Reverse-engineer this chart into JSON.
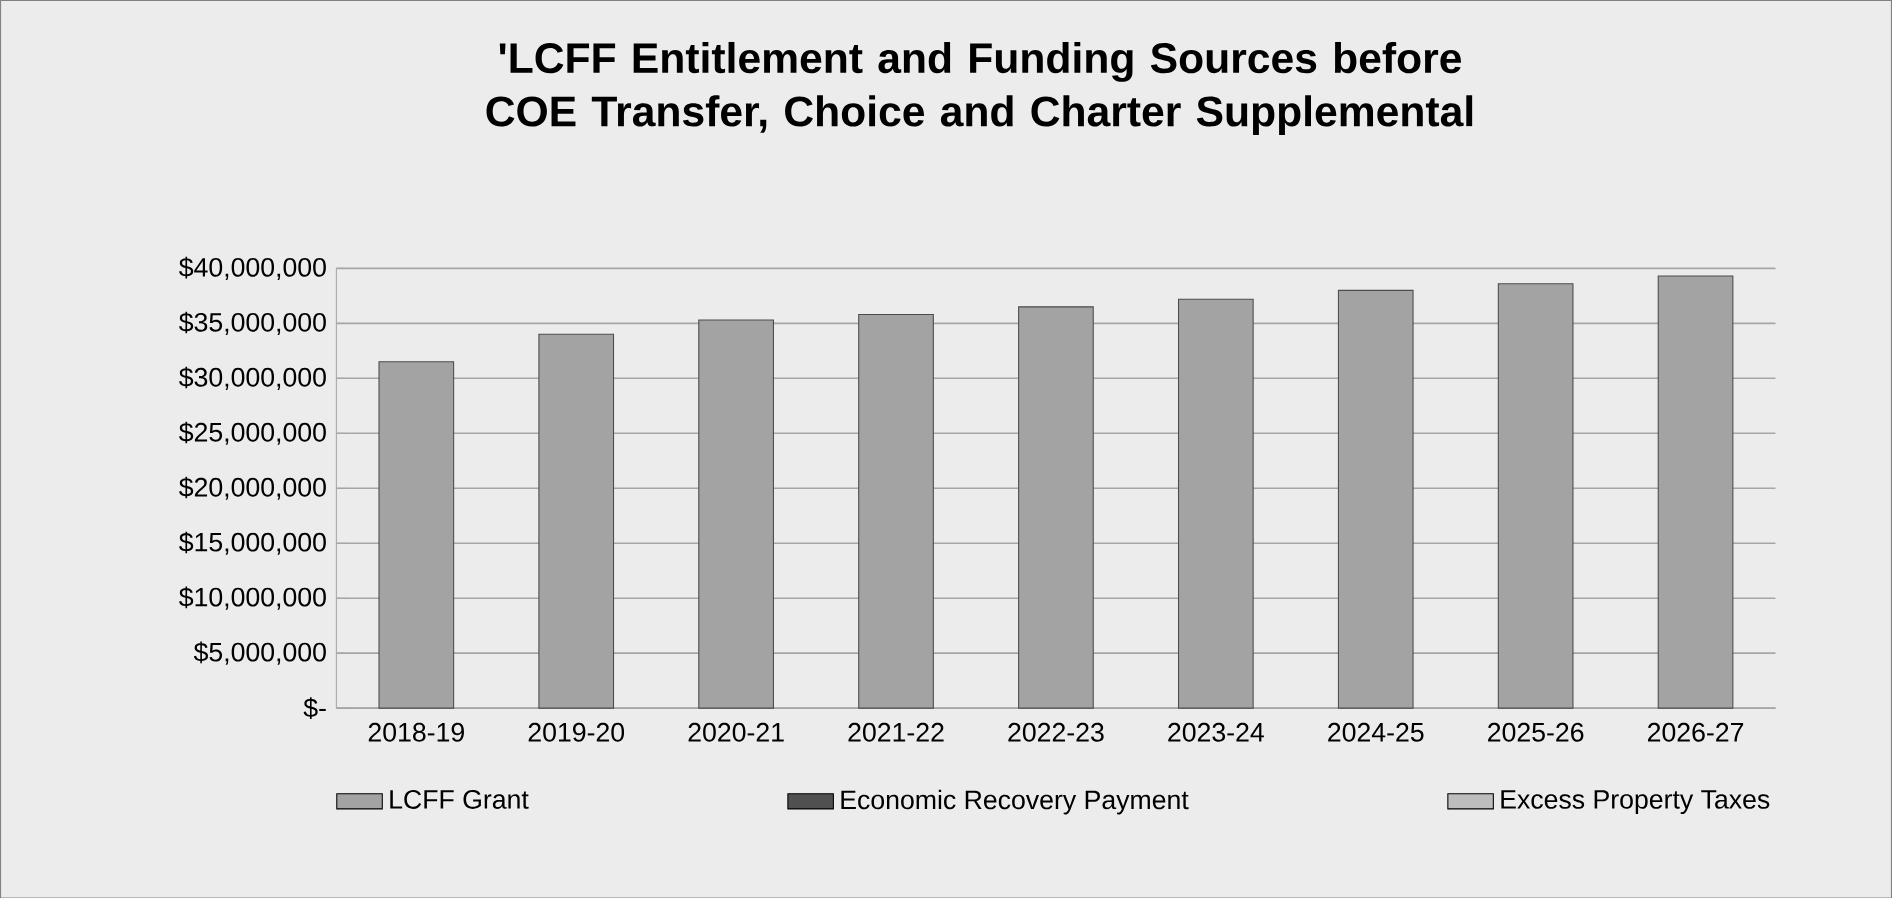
{
  "chart_data": {
    "type": "bar",
    "stacked": true,
    "title": "'LCFF Entitlement and Funding Sources before COE Transfer, Choice and Charter Supplemental",
    "categories": [
      "2018-19",
      "2019-20",
      "2020-21",
      "2021-22",
      "2022-23",
      "2023-24",
      "2024-25",
      "2025-26",
      "2026-27"
    ],
    "series": [
      {
        "name": "LCFF Grant",
        "color": "#a3a3a3",
        "values": [
          31500000,
          34000000,
          35300000,
          35800000,
          36500000,
          37200000,
          38000000,
          38600000,
          39300000
        ]
      },
      {
        "name": "Economic Recovery Payment",
        "color": "#505050",
        "values": [
          null,
          null,
          null,
          null,
          null,
          null,
          null,
          null,
          null
        ]
      },
      {
        "name": "Excess Property Taxes",
        "color": "#bdbdbd",
        "values": [
          null,
          null,
          null,
          null,
          null,
          null,
          null,
          null,
          null
        ]
      }
    ],
    "ylim": [
      0,
      40000000
    ],
    "yticks": [
      {
        "value": 0,
        "label": "$-"
      },
      {
        "value": 5000000,
        "label": "$5,000,000"
      },
      {
        "value": 10000000,
        "label": "$10,000,000"
      },
      {
        "value": 15000000,
        "label": "$15,000,000"
      },
      {
        "value": 20000000,
        "label": "$20,000,000"
      },
      {
        "value": 25000000,
        "label": "$25,000,000"
      },
      {
        "value": 30000000,
        "label": "$30,000,000"
      },
      {
        "value": 35000000,
        "label": "$35,000,000"
      },
      {
        "value": 40000000,
        "label": "$40,000,000"
      }
    ],
    "grid": "y",
    "legend": "bottom"
  }
}
